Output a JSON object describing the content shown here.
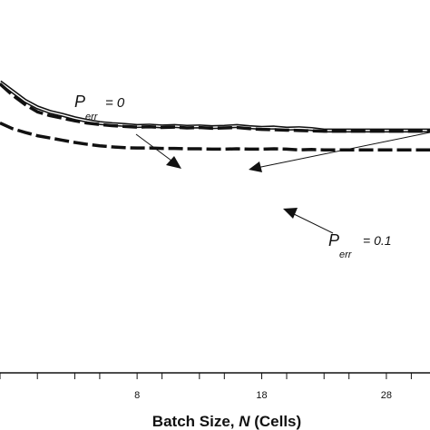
{
  "chart_data": {
    "type": "line",
    "xlabel": "Batch Size, N (Cells)",
    "xlabel_parts": {
      "prefix": "Batch Size, ",
      "var": "N",
      "suffix": " (Cells)"
    },
    "xlim": [
      -3,
      31.5
    ],
    "ylim": [
      0,
      1
    ],
    "xticks": [
      8,
      18,
      28
    ],
    "minor_xticks": [
      -3,
      0,
      3,
      5,
      10,
      13,
      15,
      20,
      23,
      25,
      30
    ],
    "grid": false,
    "y_axis_visible": false,
    "series": [
      {
        "style": "double-solid",
        "x": [
          -3,
          -2,
          -1,
          0,
          1,
          2,
          3,
          4,
          5,
          6,
          7,
          8,
          9,
          10,
          11,
          12,
          13,
          14,
          15,
          16,
          17,
          18,
          19,
          20,
          21,
          22,
          23,
          24,
          25,
          26,
          27,
          28,
          29,
          30,
          31,
          31.5
        ],
        "y": [
          0.78,
          0.755,
          0.73,
          0.712,
          0.7,
          0.692,
          0.683,
          0.676,
          0.67,
          0.667,
          0.665,
          0.662,
          0.663,
          0.661,
          0.662,
          0.66,
          0.661,
          0.659,
          0.66,
          0.662,
          0.659,
          0.657,
          0.658,
          0.655,
          0.656,
          0.654,
          0.65,
          0.65,
          0.65,
          0.65,
          0.65,
          0.65,
          0.65,
          0.65,
          0.65,
          0.65
        ]
      },
      {
        "style": "dash",
        "x": [
          -3,
          -2,
          -1,
          0,
          1,
          2,
          3,
          4,
          5,
          6,
          7,
          8,
          9,
          10,
          11,
          12,
          13,
          14,
          15,
          16,
          17,
          18,
          19,
          20,
          21,
          22,
          23,
          24,
          25,
          26,
          27,
          28,
          29,
          30,
          31,
          31.5
        ],
        "y": [
          0.775,
          0.745,
          0.72,
          0.7,
          0.69,
          0.683,
          0.676,
          0.67,
          0.666,
          0.663,
          0.661,
          0.659,
          0.66,
          0.658,
          0.659,
          0.657,
          0.658,
          0.656,
          0.657,
          0.658,
          0.655,
          0.653,
          0.652,
          0.651,
          0.65,
          0.649,
          0.648,
          0.648,
          0.648,
          0.648,
          0.648,
          0.648,
          0.648,
          0.648,
          0.648,
          0.648
        ]
      },
      {
        "style": "dash",
        "x": [
          -3,
          -2,
          -1,
          0,
          1,
          2,
          3,
          4,
          5,
          6,
          7,
          8,
          9,
          10,
          11,
          12,
          13,
          14,
          15,
          16,
          17,
          18,
          19,
          20,
          21,
          22,
          23,
          24,
          25,
          26,
          27,
          28,
          29,
          30,
          31,
          31.5
        ],
        "y": [
          0.67,
          0.655,
          0.645,
          0.636,
          0.63,
          0.624,
          0.618,
          0.613,
          0.609,
          0.606,
          0.604,
          0.603,
          0.603,
          0.602,
          0.602,
          0.601,
          0.601,
          0.6,
          0.6,
          0.601,
          0.6,
          0.6,
          0.601,
          0.6,
          0.598,
          0.599,
          0.598,
          0.598,
          0.598,
          0.598,
          0.598,
          0.598,
          0.598,
          0.598,
          0.598,
          0.598
        ]
      }
    ],
    "annotations": [
      {
        "id": "perr-0",
        "var": "P",
        "sub": "err",
        "text": "= 0"
      },
      {
        "id": "perr-01",
        "var": "P",
        "sub": "err",
        "text": "= 0.1"
      }
    ]
  }
}
